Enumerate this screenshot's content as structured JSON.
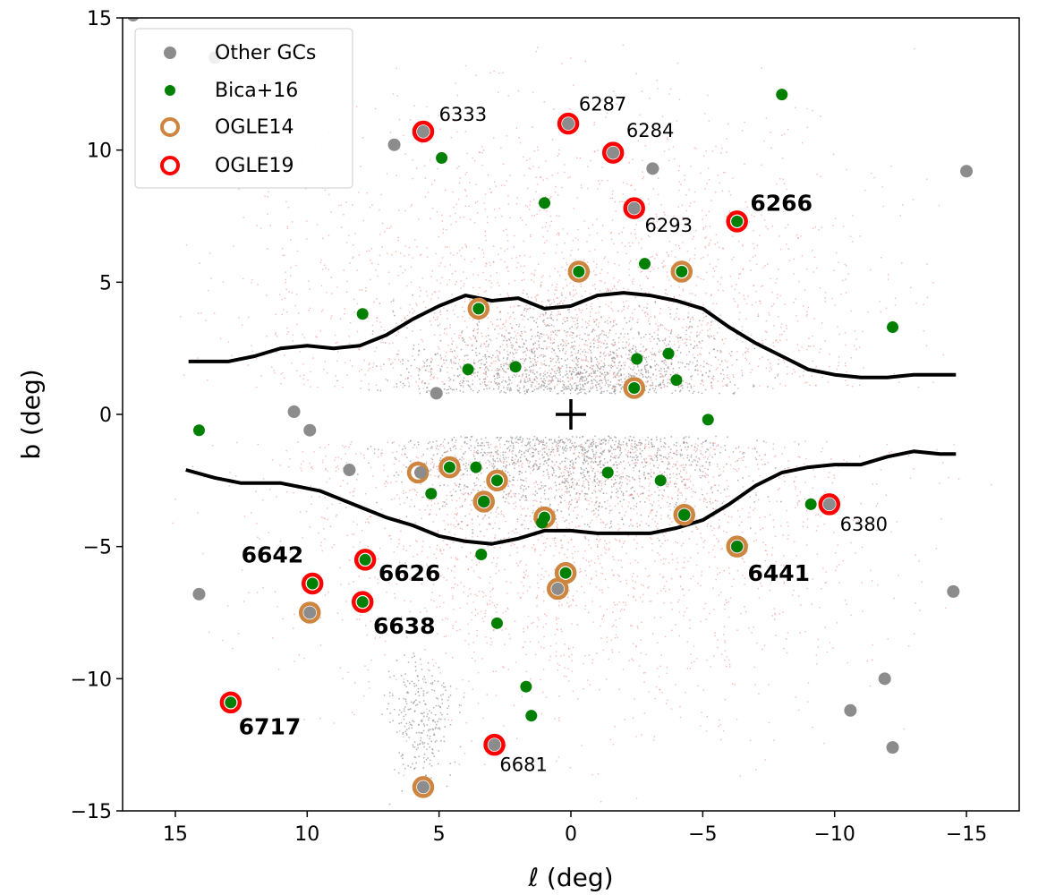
{
  "chart_data": {
    "type": "scatter",
    "xlabel": "ℓ (deg)",
    "ylabel": "b (deg)",
    "xlim": [
      17,
      -17
    ],
    "ylim": [
      -15,
      15
    ],
    "xticks": [
      15,
      10,
      5,
      0,
      -5,
      -10,
      -15
    ],
    "xtick_labels": [
      "15",
      "10",
      "5",
      "0",
      "−5",
      "−10",
      "−15"
    ],
    "yticks": [
      -15,
      -10,
      -5,
      0,
      5,
      10,
      15
    ],
    "ytick_labels": [
      "−15",
      "−10",
      "−5",
      "0",
      "5",
      "10",
      "15"
    ],
    "legend_position": "top-left",
    "legend": [
      {
        "label": "Other GCs",
        "marker": "gray-dot",
        "color": "#888888"
      },
      {
        "label": "Bica+16",
        "marker": "green-dot",
        "color": "#008000"
      },
      {
        "label": "OGLE14",
        "marker": "ring",
        "color": "#cd853f"
      },
      {
        "label": "OGLE19",
        "marker": "ring",
        "color": "#ff0000"
      }
    ],
    "colors": {
      "other": "#8c8c8c",
      "bica": "#008000",
      "ogle14": "#cd853f",
      "ogle19": "#ff0000",
      "boundary": "#000000",
      "field_red": "#ef8080",
      "field_gray": "#909090"
    },
    "center_marker": {
      "l": 0,
      "b": 0,
      "symbol": "+"
    },
    "series": [
      {
        "name": "Other GCs",
        "points": [
          [
            16.6,
            15.1
          ],
          [
            13.5,
            13.5
          ],
          [
            6.7,
            10.2
          ],
          [
            5.6,
            10.7
          ],
          [
            0.1,
            11.0
          ],
          [
            -1.6,
            9.9
          ],
          [
            -3.1,
            9.3
          ],
          [
            -2.4,
            7.8
          ],
          [
            -15.0,
            9.2
          ],
          [
            5.1,
            0.8
          ],
          [
            10.5,
            0.1
          ],
          [
            9.9,
            -0.6
          ],
          [
            8.4,
            -2.1
          ],
          [
            5.7,
            -2.2
          ],
          [
            3.3,
            -3.3
          ],
          [
            -9.8,
            -3.4
          ],
          [
            -6.3,
            -5.0
          ],
          [
            -4.3,
            -3.8
          ],
          [
            0.5,
            -6.6
          ],
          [
            14.1,
            -6.8
          ],
          [
            9.9,
            -7.5
          ],
          [
            -10.6,
            -11.2
          ],
          [
            -11.9,
            -10.0
          ],
          [
            -12.2,
            -12.6
          ],
          [
            -14.5,
            -6.7
          ],
          [
            5.6,
            -14.1
          ],
          [
            2.9,
            -12.5
          ]
        ]
      },
      {
        "name": "Bica+16",
        "points": [
          [
            4.9,
            9.7
          ],
          [
            1.0,
            8.0
          ],
          [
            -6.3,
            7.3
          ],
          [
            -8.0,
            12.1
          ],
          [
            -2.8,
            5.7
          ],
          [
            -0.3,
            5.4
          ],
          [
            -4.2,
            5.4
          ],
          [
            -12.2,
            3.3
          ],
          [
            3.5,
            4.0
          ],
          [
            7.9,
            3.8
          ],
          [
            3.9,
            1.7
          ],
          [
            2.1,
            1.8
          ],
          [
            -2.5,
            2.1
          ],
          [
            -3.7,
            2.3
          ],
          [
            -4.0,
            1.3
          ],
          [
            -2.4,
            1.0
          ],
          [
            14.1,
            -0.6
          ],
          [
            -5.2,
            -0.2
          ],
          [
            4.6,
            -2.0
          ],
          [
            3.6,
            -2.0
          ],
          [
            -1.4,
            -2.2
          ],
          [
            -3.4,
            -2.5
          ],
          [
            5.3,
            -3.0
          ],
          [
            2.8,
            -2.5
          ],
          [
            3.3,
            -3.3
          ],
          [
            1.0,
            -3.9
          ],
          [
            1.1,
            -4.1
          ],
          [
            -4.3,
            -3.8
          ],
          [
            -9.1,
            -3.4
          ],
          [
            3.4,
            -5.3
          ],
          [
            7.8,
            -5.5
          ],
          [
            9.8,
            -6.4
          ],
          [
            7.9,
            -7.1
          ],
          [
            2.8,
            -7.9
          ],
          [
            0.2,
            -6.0
          ],
          [
            1.7,
            -10.3
          ],
          [
            1.5,
            -11.4
          ],
          [
            12.9,
            -10.9
          ],
          [
            -6.3,
            -5.0
          ]
        ]
      },
      {
        "name": "OGLE14",
        "points": [
          [
            3.5,
            4.0
          ],
          [
            -0.3,
            5.4
          ],
          [
            -4.2,
            5.4
          ],
          [
            -2.4,
            1.0
          ],
          [
            5.8,
            -2.2
          ],
          [
            4.6,
            -2.0
          ],
          [
            3.3,
            -3.3
          ],
          [
            2.8,
            -2.5
          ],
          [
            1.0,
            -3.9
          ],
          [
            -4.3,
            -3.8
          ],
          [
            -6.3,
            -5.0
          ],
          [
            0.2,
            -6.0
          ],
          [
            0.5,
            -6.6
          ],
          [
            9.9,
            -7.5
          ],
          [
            5.6,
            -14.1
          ]
        ]
      },
      {
        "name": "OGLE19",
        "points": [
          [
            5.6,
            10.7
          ],
          [
            0.1,
            11.0
          ],
          [
            -1.6,
            9.9
          ],
          [
            -2.4,
            7.8
          ],
          [
            -6.3,
            7.3
          ],
          [
            -9.8,
            -3.4
          ],
          [
            7.8,
            -5.5
          ],
          [
            9.8,
            -6.4
          ],
          [
            7.9,
            -7.1
          ],
          [
            12.9,
            -10.9
          ],
          [
            2.9,
            -12.5
          ]
        ]
      }
    ],
    "boundaries": [
      {
        "name": "north",
        "points": [
          [
            14.5,
            2.0
          ],
          [
            13.0,
            2.0
          ],
          [
            12.0,
            2.2
          ],
          [
            11.0,
            2.5
          ],
          [
            10.0,
            2.6
          ],
          [
            9.0,
            2.5
          ],
          [
            8.0,
            2.6
          ],
          [
            7.0,
            3.0
          ],
          [
            6.0,
            3.6
          ],
          [
            5.0,
            4.1
          ],
          [
            4.0,
            4.5
          ],
          [
            3.0,
            4.3
          ],
          [
            2.0,
            4.4
          ],
          [
            1.0,
            4.0
          ],
          [
            0.0,
            4.1
          ],
          [
            -1.0,
            4.5
          ],
          [
            -2.0,
            4.6
          ],
          [
            -3.0,
            4.5
          ],
          [
            -4.0,
            4.3
          ],
          [
            -5.0,
            4.0
          ],
          [
            -6.0,
            3.3
          ],
          [
            -7.0,
            2.7
          ],
          [
            -8.0,
            2.2
          ],
          [
            -9.0,
            1.7
          ],
          [
            -10.0,
            1.5
          ],
          [
            -11.0,
            1.4
          ],
          [
            -12.0,
            1.4
          ],
          [
            -13.0,
            1.5
          ],
          [
            -14.0,
            1.5
          ],
          [
            -14.6,
            1.5
          ]
        ]
      },
      {
        "name": "south",
        "points": [
          [
            14.6,
            -2.1
          ],
          [
            13.5,
            -2.4
          ],
          [
            12.5,
            -2.6
          ],
          [
            11.0,
            -2.6
          ],
          [
            9.5,
            -2.9
          ],
          [
            8.0,
            -3.5
          ],
          [
            7.0,
            -3.9
          ],
          [
            6.0,
            -4.2
          ],
          [
            5.0,
            -4.6
          ],
          [
            4.0,
            -4.8
          ],
          [
            3.0,
            -4.9
          ],
          [
            2.0,
            -4.7
          ],
          [
            1.0,
            -4.4
          ],
          [
            0.0,
            -4.4
          ],
          [
            -1.0,
            -4.5
          ],
          [
            -2.0,
            -4.5
          ],
          [
            -3.0,
            -4.5
          ],
          [
            -4.0,
            -4.3
          ],
          [
            -5.0,
            -4.0
          ],
          [
            -6.0,
            -3.4
          ],
          [
            -7.0,
            -2.7
          ],
          [
            -8.0,
            -2.2
          ],
          [
            -9.0,
            -2.0
          ],
          [
            -10.0,
            -1.9
          ],
          [
            -11.0,
            -1.9
          ],
          [
            -12.0,
            -1.6
          ],
          [
            -13.0,
            -1.4
          ],
          [
            -14.0,
            -1.5
          ],
          [
            -14.6,
            -1.5
          ]
        ]
      }
    ],
    "annotations": [
      {
        "text": "6333",
        "l": 5.0,
        "b": 11.1,
        "bold": false
      },
      {
        "text": "6287",
        "l": -0.3,
        "b": 11.5,
        "bold": false
      },
      {
        "text": "6284",
        "l": -2.1,
        "b": 10.5,
        "bold": false
      },
      {
        "text": "6266",
        "l": -6.8,
        "b": 7.7,
        "bold": true
      },
      {
        "text": "6293",
        "l": -2.8,
        "b": 6.9,
        "bold": false
      },
      {
        "text": "6380",
        "l": -10.2,
        "b": -4.4,
        "bold": false
      },
      {
        "text": "6441",
        "l": -6.7,
        "b": -6.3,
        "bold": true
      },
      {
        "text": "6642",
        "l": 12.5,
        "b": -5.6,
        "bold": true
      },
      {
        "text": "6626",
        "l": 7.3,
        "b": -6.3,
        "bold": true
      },
      {
        "text": "6638",
        "l": 7.5,
        "b": -8.3,
        "bold": true
      },
      {
        "text": "6717",
        "l": 12.6,
        "b": -12.1,
        "bold": true
      },
      {
        "text": "6681",
        "l": 2.7,
        "b": -13.5,
        "bold": false
      }
    ]
  }
}
